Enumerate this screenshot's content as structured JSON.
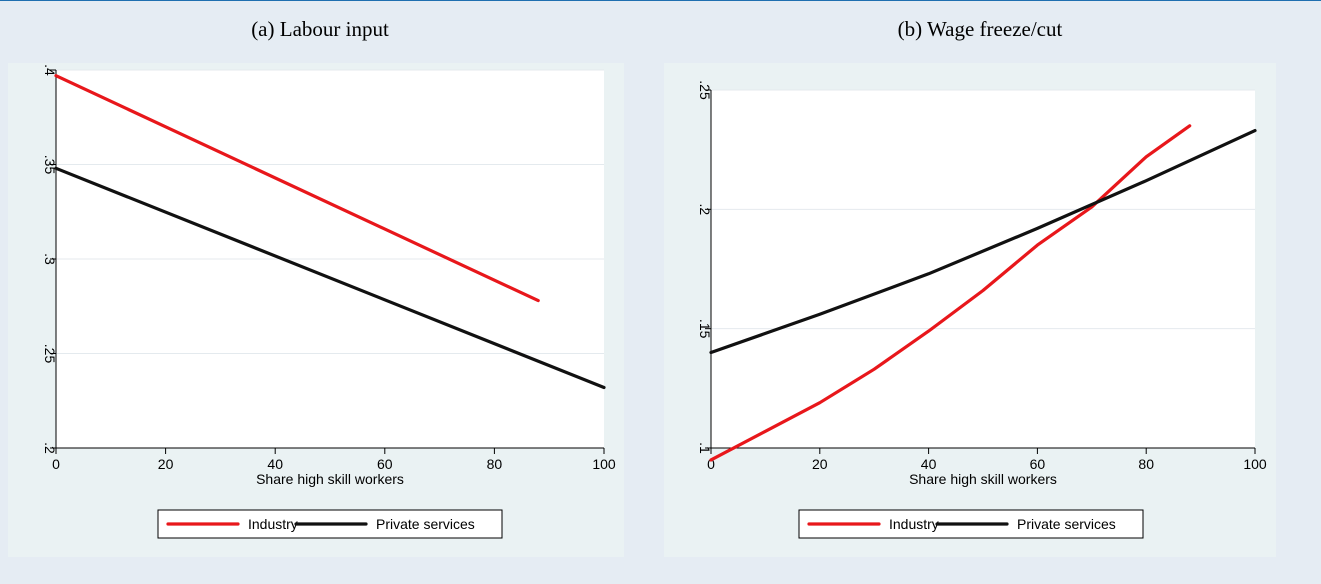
{
  "chart_data": [
    {
      "type": "line",
      "title": "(a) Labour input",
      "xlabel": "Share high skill workers",
      "ylabel": "",
      "xlim": [
        0,
        100
      ],
      "ylim": [
        0.2,
        0.4
      ],
      "xticks": [
        0,
        20,
        40,
        60,
        80,
        100
      ],
      "xtick_labels": [
        "0",
        "20",
        "40",
        "60",
        "80",
        "100"
      ],
      "yticks": [
        0.2,
        0.25,
        0.3,
        0.35,
        0.4
      ],
      "ytick_labels": [
        ".2",
        ".25",
        ".3",
        ".35",
        ".4"
      ],
      "grid": true,
      "legend": "bottom",
      "series": [
        {
          "name": "Industry",
          "color": "#e8171b",
          "x": [
            0,
            88
          ],
          "y": [
            0.397,
            0.278
          ]
        },
        {
          "name": "Private services",
          "color": "#111111",
          "x": [
            0,
            100
          ],
          "y": [
            0.348,
            0.232
          ]
        }
      ]
    },
    {
      "type": "line",
      "title": "(b) Wage freeze/cut",
      "xlabel": "Share high skill workers",
      "ylabel": "",
      "xlim": [
        0,
        100
      ],
      "ylim": [
        0.1,
        0.25
      ],
      "xticks": [
        0,
        20,
        40,
        60,
        80,
        100
      ],
      "xtick_labels": [
        "0",
        "20",
        "40",
        "60",
        "80",
        "100"
      ],
      "yticks": [
        0.1,
        0.15,
        0.2,
        0.25
      ],
      "ytick_labels": [
        ".1",
        ".15",
        ".2",
        ".25"
      ],
      "grid": true,
      "legend": "bottom",
      "series": [
        {
          "name": "Industry",
          "color": "#e8171b",
          "x": [
            0,
            10,
            20,
            30,
            40,
            50,
            60,
            70,
            80,
            88
          ],
          "y": [
            0.095,
            0.107,
            0.119,
            0.133,
            0.149,
            0.166,
            0.185,
            0.201,
            0.222,
            0.235
          ]
        },
        {
          "name": "Private services",
          "color": "#111111",
          "x": [
            0,
            20,
            40,
            60,
            80,
            100
          ],
          "y": [
            0.14,
            0.156,
            0.173,
            0.192,
            0.212,
            0.233
          ]
        }
      ]
    }
  ]
}
